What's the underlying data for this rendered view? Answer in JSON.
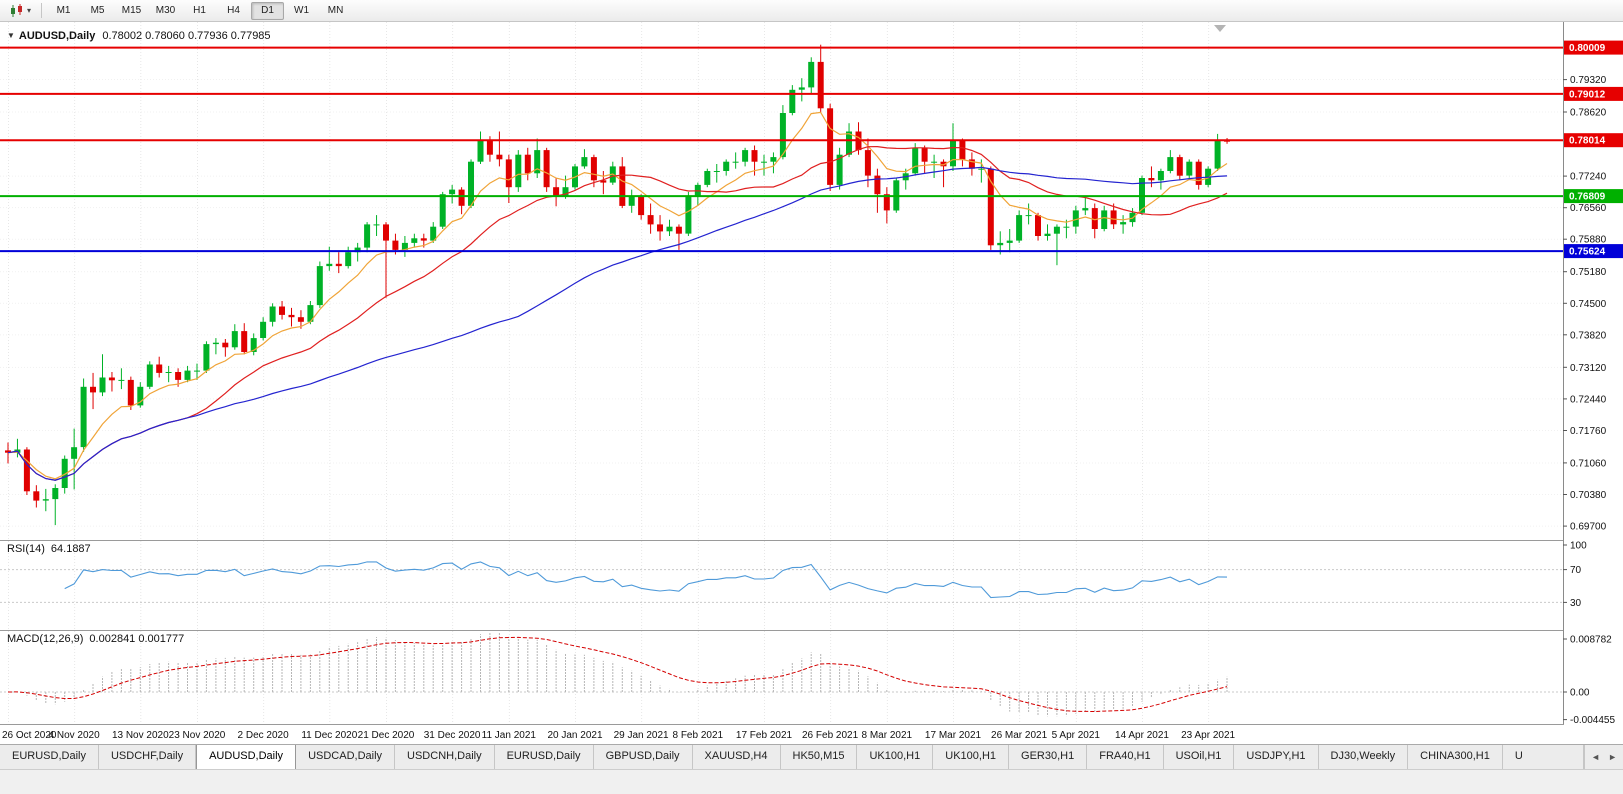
{
  "toolbar": {
    "chart_type_icon": "candlestick-chart-icon",
    "dropdown_glyph": "▾",
    "timeframes": [
      "M1",
      "M5",
      "M15",
      "M30",
      "H1",
      "H4",
      "D1",
      "W1",
      "MN"
    ],
    "active_timeframe": "D1"
  },
  "chart": {
    "title_marker": "▼",
    "symbol_title": "AUDUSD,Daily",
    "ohlc_text": "0.78002 0.78060 0.77936 0.77985"
  },
  "chart_data": {
    "type": "candlestick",
    "symbol": "AUDUSD",
    "timeframe": "Daily",
    "colors": {
      "bull": "#00b227",
      "bear": "#e00000",
      "background": "#ffffff"
    },
    "y_axis": {
      "min": 0.694,
      "max": 0.8056,
      "ticks": [
        "0.79320",
        "0.78620",
        "0.77240",
        "0.76560",
        "0.75880",
        "0.75180",
        "0.74500",
        "0.73820",
        "0.73120",
        "0.72440",
        "0.71760",
        "0.71060",
        "0.70380",
        "0.69700"
      ]
    },
    "hlines": [
      {
        "value": 0.80009,
        "label": "0.80009",
        "color": "#e60000"
      },
      {
        "value": 0.79012,
        "label": "0.79012",
        "color": "#e60000"
      },
      {
        "value": 0.78014,
        "label": "0.78014",
        "color": "#e60000"
      },
      {
        "value": 0.76809,
        "label": "0.76809",
        "color": "#00b000"
      },
      {
        "value": 0.75624,
        "label": "0.75624",
        "color": "#0000d8"
      }
    ],
    "moving_averages": [
      {
        "period": 8,
        "method": "ema",
        "color": "#f0a438"
      },
      {
        "period": 20,
        "method": "sma",
        "color": "#e02020"
      },
      {
        "period": 55,
        "method": "sma",
        "color": "#2424d0"
      }
    ],
    "rsi": {
      "name": "RSI(14)",
      "value": "64.1887",
      "period": 14,
      "color": "#4f9ad9",
      "levels": [
        70,
        30
      ],
      "scale_labels": [
        "100",
        "70",
        "30"
      ]
    },
    "macd": {
      "name": "MACD(12,26,9)",
      "values": "0.002841 0.001777",
      "fast": 12,
      "slow": 26,
      "signal_period": 9,
      "hist_color": "#b6b6b6",
      "signal_color": "#d40000",
      "scale_labels": [
        {
          "v": 0.008782,
          "label": "0.008782"
        },
        {
          "v": 0.0,
          "label": "0.00"
        },
        {
          "v": -0.004455,
          "label": "-0.004455"
        }
      ]
    },
    "date_labels": [
      {
        "i": 0,
        "t": "26 Oct 2020"
      },
      {
        "i": 7,
        "t": "4 Nov 2020"
      },
      {
        "i": 14,
        "t": "13 Nov 2020"
      },
      {
        "i": 20,
        "t": "23 Nov 2020"
      },
      {
        "i": 27,
        "t": "2 Dec 2020"
      },
      {
        "i": 34,
        "t": "11 Dec 2020"
      },
      {
        "i": 40,
        "t": "21 Dec 2020"
      },
      {
        "i": 47,
        "t": "31 Dec 2020"
      },
      {
        "i": 53,
        "t": "11 Jan 2021"
      },
      {
        "i": 60,
        "t": "20 Jan 2021"
      },
      {
        "i": 67,
        "t": "29 Jan 2021"
      },
      {
        "i": 73,
        "t": "8 Feb 2021"
      },
      {
        "i": 80,
        "t": "17 Feb 2021"
      },
      {
        "i": 87,
        "t": "26 Feb 2021"
      },
      {
        "i": 93,
        "t": "8 Mar 2021"
      },
      {
        "i": 100,
        "t": "17 Mar 2021"
      },
      {
        "i": 107,
        "t": "26 Mar 2021"
      },
      {
        "i": 113,
        "t": "5 Apr 2021"
      },
      {
        "i": 120,
        "t": "14 Apr 2021"
      },
      {
        "i": 127,
        "t": "23 Apr 2021"
      }
    ],
    "candles": [
      [
        0.7133,
        0.715,
        0.7105,
        0.7128
      ],
      [
        0.7128,
        0.7158,
        0.7118,
        0.7135
      ],
      [
        0.7135,
        0.714,
        0.7037,
        0.7045
      ],
      [
        0.7045,
        0.7058,
        0.701,
        0.7025
      ],
      [
        0.7025,
        0.705,
        0.7002,
        0.7028
      ],
      [
        0.7028,
        0.706,
        0.6972,
        0.7052
      ],
      [
        0.7052,
        0.7122,
        0.704,
        0.7115
      ],
      [
        0.7115,
        0.718,
        0.7049,
        0.714
      ],
      [
        0.714,
        0.7288,
        0.713,
        0.727
      ],
      [
        0.727,
        0.73,
        0.7222,
        0.7258
      ],
      [
        0.7258,
        0.734,
        0.725,
        0.729
      ],
      [
        0.729,
        0.7302,
        0.726,
        0.7284
      ],
      [
        0.7284,
        0.731,
        0.7265,
        0.7285
      ],
      [
        0.7285,
        0.7292,
        0.722,
        0.723
      ],
      [
        0.723,
        0.728,
        0.7225,
        0.727
      ],
      [
        0.727,
        0.7325,
        0.7265,
        0.7318
      ],
      [
        0.7318,
        0.7335,
        0.729,
        0.73
      ],
      [
        0.73,
        0.7315,
        0.728,
        0.7302
      ],
      [
        0.7302,
        0.731,
        0.727,
        0.7285
      ],
      [
        0.7285,
        0.7315,
        0.728,
        0.7305
      ],
      [
        0.7305,
        0.732,
        0.7285,
        0.7305
      ],
      [
        0.7305,
        0.7368,
        0.73,
        0.7362
      ],
      [
        0.7362,
        0.7375,
        0.734,
        0.7365
      ],
      [
        0.7365,
        0.7373,
        0.7335,
        0.7355
      ],
      [
        0.7355,
        0.7405,
        0.735,
        0.739
      ],
      [
        0.739,
        0.7407,
        0.734,
        0.7345
      ],
      [
        0.7345,
        0.7385,
        0.7338,
        0.7375
      ],
      [
        0.7375,
        0.742,
        0.737,
        0.741
      ],
      [
        0.741,
        0.745,
        0.74,
        0.7443
      ],
      [
        0.7443,
        0.7455,
        0.7415,
        0.7425
      ],
      [
        0.7425,
        0.744,
        0.74,
        0.742
      ],
      [
        0.742,
        0.7435,
        0.7395,
        0.741
      ],
      [
        0.741,
        0.7455,
        0.7405,
        0.7446
      ],
      [
        0.7446,
        0.754,
        0.744,
        0.753
      ],
      [
        0.753,
        0.7572,
        0.752,
        0.7535
      ],
      [
        0.7535,
        0.756,
        0.7515,
        0.753
      ],
      [
        0.753,
        0.7572,
        0.7525,
        0.756
      ],
      [
        0.756,
        0.758,
        0.754,
        0.757
      ],
      [
        0.757,
        0.7625,
        0.756,
        0.762
      ],
      [
        0.762,
        0.764,
        0.7595,
        0.762
      ],
      [
        0.762,
        0.7625,
        0.7462,
        0.7585
      ],
      [
        0.7585,
        0.76,
        0.7555,
        0.7565
      ],
      [
        0.7565,
        0.7595,
        0.755,
        0.758
      ],
      [
        0.758,
        0.76,
        0.757,
        0.759
      ],
      [
        0.759,
        0.76,
        0.757,
        0.7585
      ],
      [
        0.7585,
        0.7625,
        0.758,
        0.7615
      ],
      [
        0.7615,
        0.769,
        0.761,
        0.7685
      ],
      [
        0.7685,
        0.7705,
        0.7665,
        0.7695
      ],
      [
        0.7695,
        0.77,
        0.7642,
        0.766
      ],
      [
        0.766,
        0.776,
        0.7655,
        0.7755
      ],
      [
        0.7755,
        0.782,
        0.775,
        0.78
      ],
      [
        0.78,
        0.781,
        0.7755,
        0.777
      ],
      [
        0.777,
        0.782,
        0.7745,
        0.776
      ],
      [
        0.776,
        0.777,
        0.7666,
        0.77
      ],
      [
        0.77,
        0.778,
        0.769,
        0.777
      ],
      [
        0.777,
        0.7785,
        0.7715,
        0.773
      ],
      [
        0.773,
        0.7805,
        0.772,
        0.778
      ],
      [
        0.778,
        0.7785,
        0.769,
        0.77
      ],
      [
        0.77,
        0.772,
        0.7659,
        0.768
      ],
      [
        0.768,
        0.7725,
        0.7675,
        0.77
      ],
      [
        0.77,
        0.775,
        0.7695,
        0.7745
      ],
      [
        0.7745,
        0.7782,
        0.774,
        0.7765
      ],
      [
        0.7765,
        0.777,
        0.77,
        0.7715
      ],
      [
        0.7715,
        0.7735,
        0.7685,
        0.771
      ],
      [
        0.771,
        0.7755,
        0.7705,
        0.7745
      ],
      [
        0.7745,
        0.7765,
        0.7655,
        0.766
      ],
      [
        0.766,
        0.7695,
        0.7645,
        0.768
      ],
      [
        0.768,
        0.7685,
        0.763,
        0.764
      ],
      [
        0.764,
        0.7665,
        0.76,
        0.762
      ],
      [
        0.762,
        0.764,
        0.7585,
        0.7605
      ],
      [
        0.7605,
        0.763,
        0.7595,
        0.7615
      ],
      [
        0.7615,
        0.762,
        0.7565,
        0.76
      ],
      [
        0.76,
        0.769,
        0.7595,
        0.768
      ],
      [
        0.768,
        0.771,
        0.766,
        0.7705
      ],
      [
        0.7705,
        0.774,
        0.77,
        0.7735
      ],
      [
        0.7735,
        0.775,
        0.771,
        0.7735
      ],
      [
        0.7735,
        0.776,
        0.7725,
        0.7755
      ],
      [
        0.7755,
        0.7775,
        0.774,
        0.7755
      ],
      [
        0.7755,
        0.7785,
        0.7745,
        0.778
      ],
      [
        0.778,
        0.779,
        0.7725,
        0.7755
      ],
      [
        0.7755,
        0.777,
        0.7725,
        0.7755
      ],
      [
        0.7755,
        0.7775,
        0.773,
        0.7765
      ],
      [
        0.7765,
        0.7877,
        0.776,
        0.786
      ],
      [
        0.786,
        0.792,
        0.7855,
        0.791
      ],
      [
        0.791,
        0.7935,
        0.7885,
        0.7915
      ],
      [
        0.7915,
        0.798,
        0.79,
        0.797
      ],
      [
        0.797,
        0.8007,
        0.786,
        0.787
      ],
      [
        0.787,
        0.788,
        0.7692,
        0.7705
      ],
      [
        0.7705,
        0.7785,
        0.7695,
        0.777
      ],
      [
        0.777,
        0.7838,
        0.7765,
        0.782
      ],
      [
        0.782,
        0.784,
        0.777,
        0.778
      ],
      [
        0.778,
        0.7805,
        0.77,
        0.7725
      ],
      [
        0.7725,
        0.774,
        0.7645,
        0.7685
      ],
      [
        0.7685,
        0.77,
        0.7622,
        0.765
      ],
      [
        0.765,
        0.772,
        0.7645,
        0.7715
      ],
      [
        0.7715,
        0.774,
        0.7695,
        0.773
      ],
      [
        0.773,
        0.7795,
        0.7725,
        0.7785
      ],
      [
        0.7785,
        0.779,
        0.773,
        0.7755
      ],
      [
        0.7755,
        0.777,
        0.772,
        0.7755
      ],
      [
        0.7755,
        0.776,
        0.77,
        0.7745
      ],
      [
        0.7745,
        0.7838,
        0.7735,
        0.78
      ],
      [
        0.78,
        0.7805,
        0.7745,
        0.776
      ],
      [
        0.776,
        0.7775,
        0.7725,
        0.774
      ],
      [
        0.774,
        0.776,
        0.771,
        0.774
      ],
      [
        0.774,
        0.7745,
        0.7565,
        0.7575
      ],
      [
        0.7575,
        0.7605,
        0.7555,
        0.758
      ],
      [
        0.758,
        0.761,
        0.756,
        0.7585
      ],
      [
        0.7585,
        0.765,
        0.758,
        0.764
      ],
      [
        0.764,
        0.7665,
        0.762,
        0.764
      ],
      [
        0.764,
        0.7645,
        0.7585,
        0.7595
      ],
      [
        0.7595,
        0.762,
        0.7585,
        0.76
      ],
      [
        0.76,
        0.762,
        0.7532,
        0.7615
      ],
      [
        0.7615,
        0.763,
        0.759,
        0.7615
      ],
      [
        0.7615,
        0.766,
        0.76,
        0.765
      ],
      [
        0.765,
        0.768,
        0.764,
        0.7655
      ],
      [
        0.7655,
        0.7665,
        0.759,
        0.761
      ],
      [
        0.761,
        0.766,
        0.7605,
        0.765
      ],
      [
        0.765,
        0.7665,
        0.761,
        0.762
      ],
      [
        0.762,
        0.764,
        0.76,
        0.7625
      ],
      [
        0.7625,
        0.7655,
        0.7615,
        0.7645
      ],
      [
        0.7645,
        0.7725,
        0.764,
        0.772
      ],
      [
        0.772,
        0.7745,
        0.77,
        0.7715
      ],
      [
        0.7715,
        0.774,
        0.7695,
        0.7735
      ],
      [
        0.7735,
        0.778,
        0.773,
        0.7765
      ],
      [
        0.7765,
        0.777,
        0.7715,
        0.7725
      ],
      [
        0.7725,
        0.776,
        0.772,
        0.7755
      ],
      [
        0.7755,
        0.776,
        0.7695,
        0.7705
      ],
      [
        0.7705,
        0.7745,
        0.77,
        0.774
      ],
      [
        0.774,
        0.7815,
        0.7735,
        0.78
      ],
      [
        0.78002,
        0.7806,
        0.77936,
        0.77985
      ]
    ]
  },
  "tabs": {
    "items": [
      "EURUSD,Daily",
      "USDCHF,Daily",
      "AUDUSD,Daily",
      "USDCAD,Daily",
      "USDCNH,Daily",
      "EURUSD,Daily",
      "GBPUSD,Daily",
      "XAUUSD,H4",
      "HK50,M15",
      "UK100,H1",
      "UK100,H1",
      "GER30,H1",
      "FRA40,H1",
      "USOil,H1",
      "USDJPY,H1",
      "DJ30,Weekly",
      "CHINA300,H1",
      "U"
    ],
    "active_index": 2,
    "scroll_left_icon": "◄",
    "scroll_right_icon": "►"
  }
}
